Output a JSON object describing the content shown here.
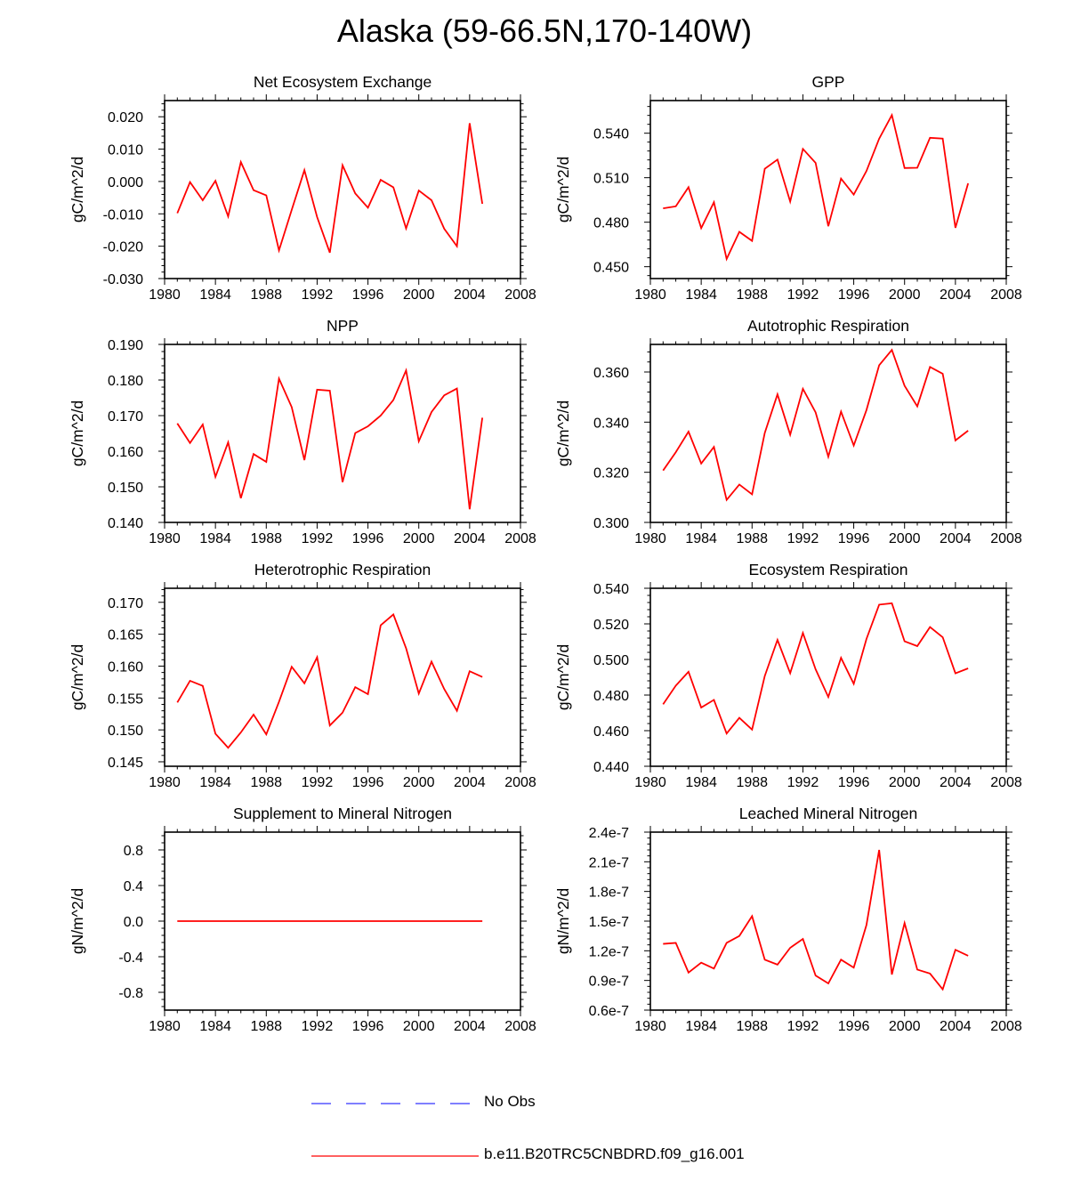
{
  "page": {
    "title": "Alaska (59-66.5N,170-140W)"
  },
  "legend": {
    "entries": [
      {
        "label": "No Obs",
        "color": "#3333ff",
        "dashed": true
      },
      {
        "label": "b.e11.B20TRC5CNBDRD.f09_g16.001",
        "color": "#ff0000",
        "dashed": false
      }
    ]
  },
  "chart_data": [
    {
      "type": "line",
      "title": "Net Ecosystem Exchange",
      "ylabel": "gC/m^2/d",
      "xlabel": "",
      "xlim": [
        1980,
        2008
      ],
      "xticks": [
        1980,
        1984,
        1988,
        1992,
        1996,
        2000,
        2004,
        2008
      ],
      "xtick_labels": [
        "1980",
        "1984",
        "1988",
        "1992",
        "1996",
        "2000",
        "2004",
        "2008"
      ],
      "ylim": [
        -0.03,
        0.025
      ],
      "yticks": [
        -0.03,
        -0.02,
        -0.01,
        0.0,
        0.01,
        0.02
      ],
      "ytick_labels": [
        "-0.030",
        "-0.020",
        "-0.010",
        "0.000",
        "0.010",
        "0.020"
      ],
      "x": [
        1981,
        1982,
        1983,
        1984,
        1985,
        1986,
        1987,
        1988,
        1989,
        1990,
        1991,
        1992,
        1993,
        1994,
        1995,
        1996,
        1997,
        1998,
        1999,
        2000,
        2001,
        2002,
        2003,
        2004,
        2005
      ],
      "series": [
        {
          "color": "#ff0000",
          "values": [
            -0.0098,
            -0.0002,
            -0.0058,
            0.0002,
            -0.0108,
            0.006,
            -0.0027,
            -0.0043,
            -0.0213,
            -0.0088,
            0.0035,
            -0.011,
            -0.022,
            0.005,
            -0.0037,
            -0.0081,
            0.0005,
            -0.0018,
            -0.0145,
            -0.0028,
            -0.0058,
            -0.0146,
            -0.02,
            0.018,
            -0.0069
          ]
        }
      ]
    },
    {
      "type": "line",
      "title": "GPP",
      "ylabel": "gC/m^2/d",
      "xlabel": "",
      "xlim": [
        1980,
        2008
      ],
      "xticks": [
        1980,
        1984,
        1988,
        1992,
        1996,
        2000,
        2004,
        2008
      ],
      "xtick_labels": [
        "1980",
        "1984",
        "1988",
        "1992",
        "1996",
        "2000",
        "2004",
        "2008"
      ],
      "ylim": [
        0.442,
        0.562
      ],
      "yticks": [
        0.45,
        0.48,
        0.51,
        0.54
      ],
      "ytick_labels": [
        "0.450",
        "0.480",
        "0.510",
        "0.540"
      ],
      "x": [
        1981,
        1982,
        1983,
        1984,
        1985,
        1986,
        1987,
        1988,
        1989,
        1990,
        1991,
        1992,
        1993,
        1994,
        1995,
        1996,
        1997,
        1998,
        1999,
        2000,
        2001,
        2002,
        2003,
        2004,
        2005
      ],
      "series": [
        {
          "color": "#ff0000",
          "values": [
            0.4893,
            0.4907,
            0.5036,
            0.476,
            0.4935,
            0.4552,
            0.4735,
            0.4674,
            0.516,
            0.5222,
            0.4939,
            0.5294,
            0.52,
            0.4773,
            0.5094,
            0.4986,
            0.5145,
            0.5363,
            0.5522,
            0.5165,
            0.5167,
            0.5369,
            0.5364,
            0.4762,
            0.5062
          ]
        }
      ]
    },
    {
      "type": "line",
      "title": "NPP",
      "ylabel": "gC/m^2/d",
      "xlabel": "",
      "xlim": [
        1980,
        2008
      ],
      "xticks": [
        1980,
        1984,
        1988,
        1992,
        1996,
        2000,
        2004,
        2008
      ],
      "xtick_labels": [
        "1980",
        "1984",
        "1988",
        "1992",
        "1996",
        "2000",
        "2004",
        "2008"
      ],
      "ylim": [
        0.14,
        0.19
      ],
      "yticks": [
        0.14,
        0.15,
        0.16,
        0.17,
        0.18,
        0.19
      ],
      "ytick_labels": [
        "0.140",
        "0.150",
        "0.160",
        "0.170",
        "0.180",
        "0.190"
      ],
      "x": [
        1981,
        1982,
        1983,
        1984,
        1985,
        1986,
        1987,
        1988,
        1989,
        1990,
        1991,
        1992,
        1993,
        1994,
        1995,
        1996,
        1997,
        1998,
        1999,
        2000,
        2001,
        2002,
        2003,
        2004,
        2005
      ],
      "series": [
        {
          "color": "#ff0000",
          "values": [
            0.1678,
            0.1623,
            0.1675,
            0.1528,
            0.1625,
            0.1468,
            0.1592,
            0.157,
            0.1804,
            0.1724,
            0.1575,
            0.1773,
            0.177,
            0.1513,
            0.1651,
            0.167,
            0.17,
            0.1744,
            0.1827,
            0.1628,
            0.171,
            0.1757,
            0.1776,
            0.1437,
            0.1694
          ]
        }
      ]
    },
    {
      "type": "line",
      "title": "Autotrophic Respiration",
      "ylabel": "gC/m^2/d",
      "xlabel": "",
      "xlim": [
        1980,
        2008
      ],
      "xticks": [
        1980,
        1984,
        1988,
        1992,
        1996,
        2000,
        2004,
        2008
      ],
      "xtick_labels": [
        "1980",
        "1984",
        "1988",
        "1992",
        "1996",
        "2000",
        "2004",
        "2008"
      ],
      "ylim": [
        0.3,
        0.371
      ],
      "yticks": [
        0.3,
        0.32,
        0.34,
        0.36
      ],
      "ytick_labels": [
        "0.300",
        "0.320",
        "0.340",
        "0.360"
      ],
      "x": [
        1981,
        1982,
        1983,
        1984,
        1985,
        1986,
        1987,
        1988,
        1989,
        1990,
        1991,
        1992,
        1993,
        1994,
        1995,
        1996,
        1997,
        1998,
        1999,
        2000,
        2001,
        2002,
        2003,
        2004,
        2005
      ],
      "series": [
        {
          "color": "#ff0000",
          "values": [
            0.3207,
            0.328,
            0.3362,
            0.3235,
            0.3301,
            0.309,
            0.3151,
            0.3112,
            0.3357,
            0.3511,
            0.335,
            0.3533,
            0.3439,
            0.3262,
            0.3442,
            0.3307,
            0.3448,
            0.3627,
            0.3688,
            0.3545,
            0.3463,
            0.362,
            0.3593,
            0.3327,
            0.3366
          ]
        }
      ]
    },
    {
      "type": "line",
      "title": "Heterotrophic Respiration",
      "ylabel": "gC/m^2/d",
      "xlabel": "",
      "xlim": [
        1980,
        2008
      ],
      "xticks": [
        1980,
        1984,
        1988,
        1992,
        1996,
        2000,
        2004,
        2008
      ],
      "xtick_labels": [
        "1980",
        "1984",
        "1988",
        "1992",
        "1996",
        "2000",
        "2004",
        "2008"
      ],
      "ylim": [
        0.1443,
        0.1722
      ],
      "yticks": [
        0.145,
        0.15,
        0.155,
        0.16,
        0.165,
        0.17
      ],
      "ytick_labels": [
        "0.145",
        "0.150",
        "0.155",
        "0.160",
        "0.165",
        "0.170"
      ],
      "x": [
        1981,
        1982,
        1983,
        1984,
        1985,
        1986,
        1987,
        1988,
        1989,
        1990,
        1991,
        1992,
        1993,
        1994,
        1995,
        1996,
        1997,
        1998,
        1999,
        2000,
        2001,
        2002,
        2003,
        2004,
        2005
      ],
      "series": [
        {
          "color": "#ff0000",
          "values": [
            0.1543,
            0.1577,
            0.1569,
            0.1494,
            0.1472,
            0.1496,
            0.1524,
            0.1493,
            0.1544,
            0.1599,
            0.1573,
            0.1614,
            0.1507,
            0.1527,
            0.1567,
            0.1556,
            0.1664,
            0.1681,
            0.1628,
            0.1557,
            0.1607,
            0.1564,
            0.153,
            0.1592,
            0.1583
          ]
        }
      ]
    },
    {
      "type": "line",
      "title": "Ecosystem Respiration",
      "ylabel": "gC/m^2/d",
      "xlabel": "",
      "xlim": [
        1980,
        2008
      ],
      "xticks": [
        1980,
        1984,
        1988,
        1992,
        1996,
        2000,
        2004,
        2008
      ],
      "xtick_labels": [
        "1980",
        "1984",
        "1988",
        "1992",
        "1996",
        "2000",
        "2004",
        "2008"
      ],
      "ylim": [
        0.44,
        0.54
      ],
      "yticks": [
        0.44,
        0.46,
        0.48,
        0.5,
        0.52,
        0.54
      ],
      "ytick_labels": [
        "0.440",
        "0.460",
        "0.480",
        "0.500",
        "0.520",
        "0.540"
      ],
      "x": [
        1981,
        1982,
        1983,
        1984,
        1985,
        1986,
        1987,
        1988,
        1989,
        1990,
        1991,
        1992,
        1993,
        1994,
        1995,
        1996,
        1997,
        1998,
        1999,
        2000,
        2001,
        2002,
        2003,
        2004,
        2005
      ],
      "series": [
        {
          "color": "#ff0000",
          "values": [
            0.4748,
            0.4853,
            0.4931,
            0.473,
            0.4773,
            0.4584,
            0.4672,
            0.4606,
            0.4907,
            0.511,
            0.4923,
            0.5149,
            0.4945,
            0.4789,
            0.5009,
            0.4863,
            0.5115,
            0.5308,
            0.5316,
            0.5102,
            0.5075,
            0.5182,
            0.5125,
            0.4922,
            0.495
          ]
        }
      ]
    },
    {
      "type": "line",
      "title": "Supplement to Mineral Nitrogen",
      "ylabel": "gN/m^2/d",
      "xlabel": "",
      "xlim": [
        1980,
        2008
      ],
      "xticks": [
        1980,
        1984,
        1988,
        1992,
        1996,
        2000,
        2004,
        2008
      ],
      "xtick_labels": [
        "1980",
        "1984",
        "1988",
        "1992",
        "1996",
        "2000",
        "2004",
        "2008"
      ],
      "ylim": [
        -1.0,
        1.0
      ],
      "yticks": [
        -0.8,
        -0.4,
        0.0,
        0.4,
        0.8
      ],
      "ytick_labels": [
        "-0.8",
        "-0.4",
        "0.0",
        "0.4",
        "0.8"
      ],
      "x": [
        1981,
        1982,
        1983,
        1984,
        1985,
        1986,
        1987,
        1988,
        1989,
        1990,
        1991,
        1992,
        1993,
        1994,
        1995,
        1996,
        1997,
        1998,
        1999,
        2000,
        2001,
        2002,
        2003,
        2004,
        2005
      ],
      "series": [
        {
          "color": "#ff0000",
          "values": [
            0,
            0,
            0,
            0,
            0,
            0,
            0,
            0,
            0,
            0,
            0,
            0,
            0,
            0,
            0,
            0,
            0,
            0,
            0,
            0,
            0,
            0,
            0,
            0,
            0
          ]
        }
      ]
    },
    {
      "type": "line",
      "title": "Leached Mineral Nitrogen",
      "ylabel": "gN/m^2/d",
      "xlabel": "",
      "xlim": [
        1980,
        2008
      ],
      "xticks": [
        1980,
        1984,
        1988,
        1992,
        1996,
        2000,
        2004,
        2008
      ],
      "xtick_labels": [
        "1980",
        "1984",
        "1988",
        "1992",
        "1996",
        "2000",
        "2004",
        "2008"
      ],
      "ylim": [
        6e-08,
        2.4e-07
      ],
      "yticks": [
        6e-08,
        9e-08,
        1.2e-07,
        1.5e-07,
        1.8e-07,
        2.1e-07,
        2.4e-07
      ],
      "ytick_labels": [
        "0.6e-7",
        "0.9e-7",
        "1.2e-7",
        "1.5e-7",
        "1.8e-7",
        "2.1e-7",
        "2.4e-7"
      ],
      "x": [
        1981,
        1982,
        1983,
        1984,
        1985,
        1986,
        1987,
        1988,
        1989,
        1990,
        1991,
        1992,
        1993,
        1994,
        1995,
        1996,
        1997,
        1998,
        1999,
        2000,
        2001,
        2002,
        2003,
        2004,
        2005
      ],
      "series": [
        {
          "color": "#ff0000",
          "values": [
            1.27e-07,
            1.28e-07,
            9.8e-08,
            1.08e-07,
            1.02e-07,
            1.28e-07,
            1.35e-07,
            1.55e-07,
            1.11e-07,
            1.06e-07,
            1.23e-07,
            1.32e-07,
            9.5e-08,
            8.7e-08,
            1.11e-07,
            1.03e-07,
            1.46e-07,
            2.22e-07,
            9.6e-08,
            1.48e-07,
            1.01e-07,
            9.7e-08,
            8.1e-08,
            1.21e-07,
            1.15e-07
          ]
        }
      ]
    }
  ]
}
